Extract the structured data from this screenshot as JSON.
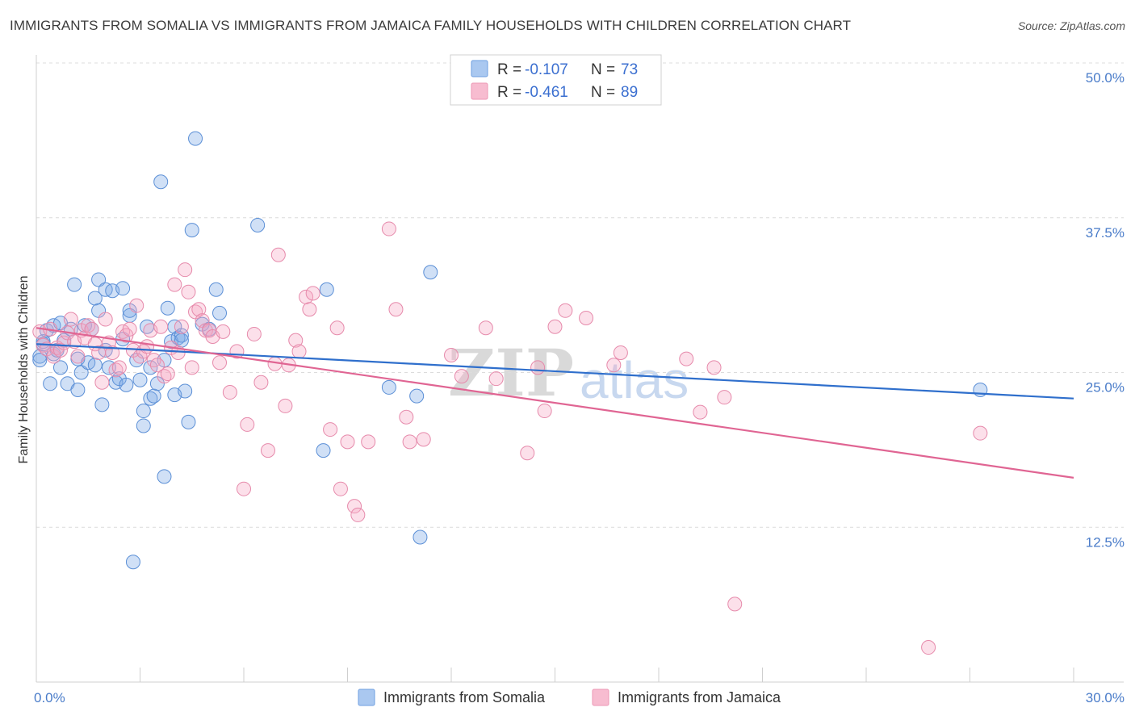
{
  "title": "IMMIGRANTS FROM SOMALIA VS IMMIGRANTS FROM JAMAICA FAMILY HOUSEHOLDS WITH CHILDREN CORRELATION CHART",
  "source": "Source: ZipAtlas.com",
  "watermark": {
    "zip": "ZIP",
    "atlas": "atlas"
  },
  "legend": {
    "r_label": "R =",
    "n_label": "N =",
    "entries": [
      {
        "r": "-0.107",
        "n": "73",
        "fill": "#aac8f0",
        "stroke": "#6f9fe0"
      },
      {
        "r": "-0.461",
        "n": "89",
        "fill": "#f7bcd0",
        "stroke": "#ec97b5"
      }
    ]
  },
  "bottom_legend": [
    {
      "label": "Immigrants from Somalia"
    },
    {
      "label": "Immigrants from Jamaica"
    }
  ],
  "colors": {
    "somalia_fill": "rgba(120,165,230,0.35)",
    "somalia_stroke": "#5b8fd6",
    "somalia_line": "#2f6fcc",
    "jamaica_fill": "rgba(245,165,195,0.35)",
    "jamaica_stroke": "#e68aab",
    "jamaica_line": "#e06593",
    "tick_text": "#4a7cc9"
  },
  "chart_data": {
    "type": "scatter",
    "ylabel": "Family Households with Children",
    "xlim": [
      0,
      30
    ],
    "ylim": [
      0,
      50
    ],
    "x_tick_labels": [
      {
        "value": 0,
        "label": "0.0%"
      },
      {
        "value": 30,
        "label": "30.0%"
      }
    ],
    "y_tick_labels": [
      {
        "value": 12.5,
        "label": "12.5%"
      },
      {
        "value": 25,
        "label": "25.0%"
      },
      {
        "value": 37.5,
        "label": "37.5%"
      },
      {
        "value": 50,
        "label": "50.0%"
      }
    ],
    "grid": "horizontal dashed",
    "legend_position": "top-center",
    "series": [
      {
        "name": "Immigrants from Somalia",
        "trend": {
          "x": [
            0,
            30
          ],
          "y": [
            27.3,
            22.9
          ]
        },
        "points": [
          [
            0.1,
            26.3
          ],
          [
            0.1,
            26.0
          ],
          [
            0.2,
            27.3
          ],
          [
            0.3,
            28.4
          ],
          [
            0.4,
            24.1
          ],
          [
            0.5,
            28.8
          ],
          [
            0.5,
            26.5
          ],
          [
            0.6,
            26.8
          ],
          [
            0.7,
            29.0
          ],
          [
            0.7,
            25.4
          ],
          [
            0.8,
            27.6
          ],
          [
            0.9,
            24.1
          ],
          [
            1.0,
            28.5
          ],
          [
            1.1,
            32.1
          ],
          [
            1.2,
            23.6
          ],
          [
            1.2,
            26.1
          ],
          [
            1.3,
            25.0
          ],
          [
            1.4,
            28.8
          ],
          [
            1.5,
            25.8
          ],
          [
            1.6,
            28.5
          ],
          [
            1.7,
            25.6
          ],
          [
            1.7,
            31.0
          ],
          [
            1.8,
            32.5
          ],
          [
            1.8,
            30.0
          ],
          [
            1.9,
            22.4
          ],
          [
            2.0,
            31.7
          ],
          [
            2.0,
            26.8
          ],
          [
            2.1,
            25.4
          ],
          [
            2.2,
            31.6
          ],
          [
            2.3,
            24.2
          ],
          [
            2.4,
            24.5
          ],
          [
            2.5,
            31.8
          ],
          [
            2.5,
            27.7
          ],
          [
            2.6,
            24.0
          ],
          [
            2.7,
            29.6
          ],
          [
            2.7,
            30.0
          ],
          [
            2.8,
            9.7
          ],
          [
            2.9,
            26.0
          ],
          [
            3.0,
            24.4
          ],
          [
            3.1,
            21.9
          ],
          [
            3.1,
            20.7
          ],
          [
            3.2,
            28.7
          ],
          [
            3.3,
            22.9
          ],
          [
            3.3,
            25.4
          ],
          [
            3.4,
            23.1
          ],
          [
            3.5,
            24.1
          ],
          [
            3.6,
            40.4
          ],
          [
            3.7,
            26.0
          ],
          [
            3.7,
            16.6
          ],
          [
            3.8,
            30.2
          ],
          [
            3.9,
            27.5
          ],
          [
            4.0,
            28.7
          ],
          [
            4.0,
            23.2
          ],
          [
            4.1,
            27.8
          ],
          [
            4.2,
            28.0
          ],
          [
            4.2,
            27.6
          ],
          [
            4.3,
            23.5
          ],
          [
            4.4,
            21.0
          ],
          [
            4.5,
            36.5
          ],
          [
            4.6,
            43.9
          ],
          [
            4.8,
            28.9
          ],
          [
            5.0,
            28.5
          ],
          [
            5.2,
            31.7
          ],
          [
            5.3,
            29.8
          ],
          [
            6.4,
            36.9
          ],
          [
            8.4,
            31.7
          ],
          [
            10.2,
            23.8
          ],
          [
            11.0,
            23.1
          ],
          [
            11.1,
            11.7
          ],
          [
            11.4,
            33.1
          ],
          [
            8.3,
            18.7
          ],
          [
            27.3,
            23.6
          ],
          [
            0.2,
            27.5
          ]
        ]
      },
      {
        "name": "Immigrants from Jamaica",
        "trend": {
          "x": [
            0,
            30
          ],
          "y": [
            28.6,
            16.5
          ]
        },
        "points": [
          [
            0.1,
            28.3
          ],
          [
            0.2,
            27.2
          ],
          [
            0.3,
            26.9
          ],
          [
            0.4,
            28.5
          ],
          [
            0.5,
            26.3
          ],
          [
            0.6,
            27.0
          ],
          [
            0.7,
            26.8
          ],
          [
            0.8,
            27.4
          ],
          [
            0.9,
            28.2
          ],
          [
            1.0,
            29.3
          ],
          [
            1.1,
            27.5
          ],
          [
            1.2,
            26.3
          ],
          [
            1.3,
            28.4
          ],
          [
            1.4,
            27.8
          ],
          [
            1.5,
            28.8
          ],
          [
            1.6,
            28.5
          ],
          [
            1.7,
            27.3
          ],
          [
            1.8,
            26.6
          ],
          [
            1.9,
            24.2
          ],
          [
            2.0,
            29.3
          ],
          [
            2.1,
            27.4
          ],
          [
            2.2,
            26.6
          ],
          [
            2.3,
            25.2
          ],
          [
            2.4,
            25.4
          ],
          [
            2.5,
            28.3
          ],
          [
            2.6,
            28.0
          ],
          [
            2.7,
            28.5
          ],
          [
            2.8,
            26.8
          ],
          [
            2.9,
            30.4
          ],
          [
            3.0,
            26.3
          ],
          [
            3.1,
            26.7
          ],
          [
            3.2,
            27.1
          ],
          [
            3.3,
            28.4
          ],
          [
            3.4,
            26.0
          ],
          [
            3.5,
            25.6
          ],
          [
            3.6,
            28.7
          ],
          [
            3.7,
            24.7
          ],
          [
            3.8,
            24.9
          ],
          [
            3.9,
            27.0
          ],
          [
            4.0,
            32.1
          ],
          [
            4.1,
            26.6
          ],
          [
            4.2,
            28.7
          ],
          [
            4.3,
            33.3
          ],
          [
            4.4,
            31.5
          ],
          [
            4.5,
            25.4
          ],
          [
            4.6,
            29.9
          ],
          [
            4.7,
            30.1
          ],
          [
            4.8,
            29.2
          ],
          [
            4.9,
            28.4
          ],
          [
            5.0,
            28.4
          ],
          [
            5.1,
            27.9
          ],
          [
            5.3,
            25.8
          ],
          [
            5.4,
            28.3
          ],
          [
            5.6,
            23.4
          ],
          [
            5.8,
            26.7
          ],
          [
            6.0,
            15.6
          ],
          [
            6.1,
            20.8
          ],
          [
            6.3,
            28.1
          ],
          [
            6.5,
            24.2
          ],
          [
            6.7,
            18.7
          ],
          [
            6.9,
            25.7
          ],
          [
            7.0,
            34.5
          ],
          [
            7.2,
            22.3
          ],
          [
            7.3,
            25.6
          ],
          [
            7.5,
            27.6
          ],
          [
            7.6,
            26.7
          ],
          [
            7.8,
            31.1
          ],
          [
            7.9,
            30.1
          ],
          [
            8.0,
            31.4
          ],
          [
            8.5,
            20.4
          ],
          [
            8.7,
            28.6
          ],
          [
            8.8,
            15.6
          ],
          [
            9.0,
            19.4
          ],
          [
            9.2,
            14.2
          ],
          [
            9.3,
            13.5
          ],
          [
            9.6,
            19.4
          ],
          [
            10.2,
            36.6
          ],
          [
            10.4,
            30.1
          ],
          [
            10.7,
            21.4
          ],
          [
            10.8,
            19.4
          ],
          [
            11.2,
            19.6
          ],
          [
            12.0,
            26.4
          ],
          [
            12.3,
            24.7
          ],
          [
            13.0,
            28.6
          ],
          [
            13.3,
            24.5
          ],
          [
            14.2,
            18.5
          ],
          [
            14.5,
            25.4
          ],
          [
            14.7,
            21.9
          ],
          [
            15.0,
            28.7
          ]
        ]
      }
    ],
    "extra_jamaica_points": [
      [
        15.3,
        30.0
      ],
      [
        15.9,
        29.4
      ],
      [
        16.7,
        25.6
      ],
      [
        16.9,
        26.6
      ],
      [
        18.8,
        26.1
      ],
      [
        19.2,
        21.8
      ],
      [
        19.6,
        25.4
      ],
      [
        19.9,
        23.0
      ],
      [
        20.2,
        6.3
      ],
      [
        25.8,
        2.8
      ],
      [
        27.3,
        20.1
      ]
    ]
  }
}
